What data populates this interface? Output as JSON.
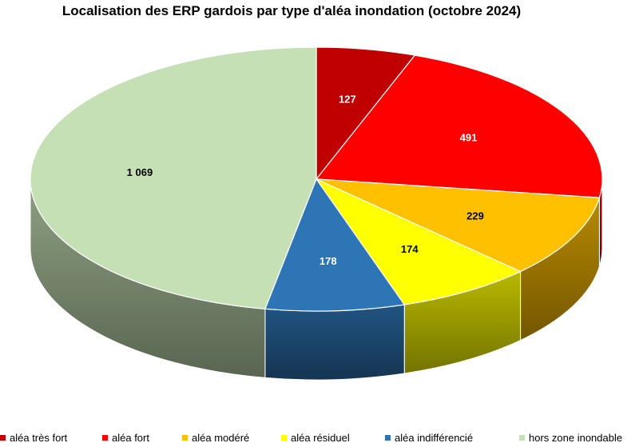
{
  "chart_data": {
    "type": "pie",
    "title": "Localisation des ERP gardois par type d'aléa inondation (octobre 2024)",
    "slices": [
      {
        "label": "aléa très fort",
        "value": 127,
        "display": "127",
        "color": "#c00000"
      },
      {
        "label": "aléa fort",
        "value": 491,
        "display": "491",
        "color": "#ff0000"
      },
      {
        "label": "aléa modéré",
        "value": 229,
        "display": "229",
        "color": "#ffc000"
      },
      {
        "label": "aléa résiduel",
        "value": 174,
        "display": "174",
        "color": "#ffff00"
      },
      {
        "label": "aléa indifférencié",
        "value": 178,
        "display": "178",
        "color": "#2e75b6"
      },
      {
        "label": "hors zone inondable",
        "value": 1069,
        "display": "1 069",
        "color": "#c5e0b4"
      }
    ],
    "legend_position": "bottom",
    "three_d": true
  }
}
